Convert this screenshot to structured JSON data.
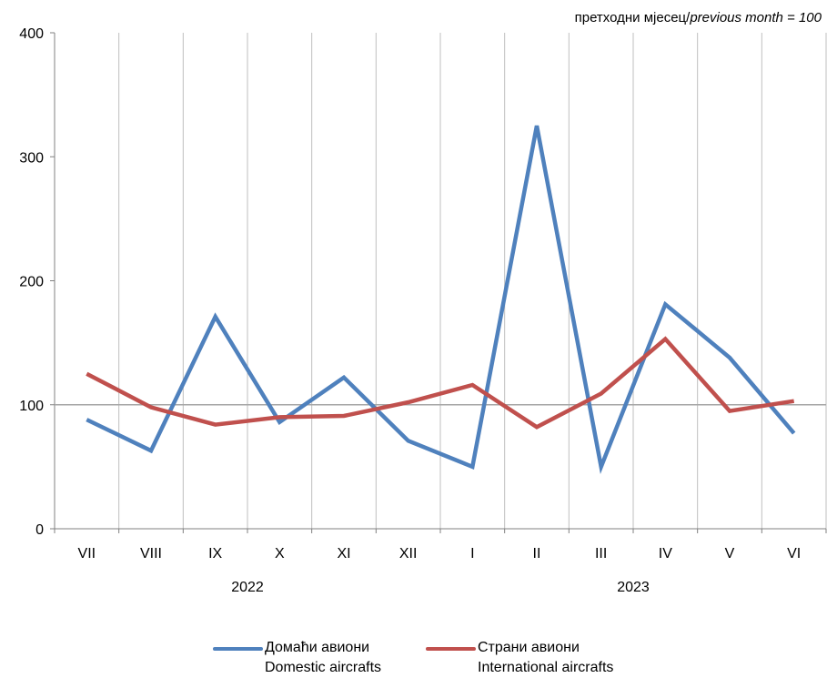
{
  "chart_data": {
    "type": "line",
    "unit_note": {
      "prefix": "претходни мјесец/",
      "italic": "previous month = 100"
    },
    "categories": [
      "VII",
      "VIII",
      "IX",
      "X",
      "XI",
      "XII",
      "I",
      "II",
      "III",
      "IV",
      "V",
      "VI"
    ],
    "year_labels": [
      {
        "label": "2022",
        "spans": [
          "VII",
          "XII"
        ]
      },
      {
        "label": "2023",
        "spans": [
          "I",
          "VI"
        ]
      }
    ],
    "y_ticks": [
      0,
      100,
      200,
      300,
      400
    ],
    "ylim": [
      0,
      400
    ],
    "reference_line": 100,
    "grid": "vertical",
    "legend_position": "bottom",
    "series": [
      {
        "name_line1": "Домаћи авиони",
        "name_line2": "Domestic aircrafts",
        "color": "#4F81BD",
        "values": [
          88,
          63,
          171,
          86,
          122,
          71,
          50,
          325,
          50,
          181,
          138,
          77
        ]
      },
      {
        "name_line1": "Страни авиони",
        "name_line2": "International aircrafts",
        "color": "#C0504D",
        "values": [
          125,
          98,
          84,
          90,
          91,
          102,
          116,
          82,
          109,
          153,
          95,
          103
        ]
      }
    ]
  }
}
